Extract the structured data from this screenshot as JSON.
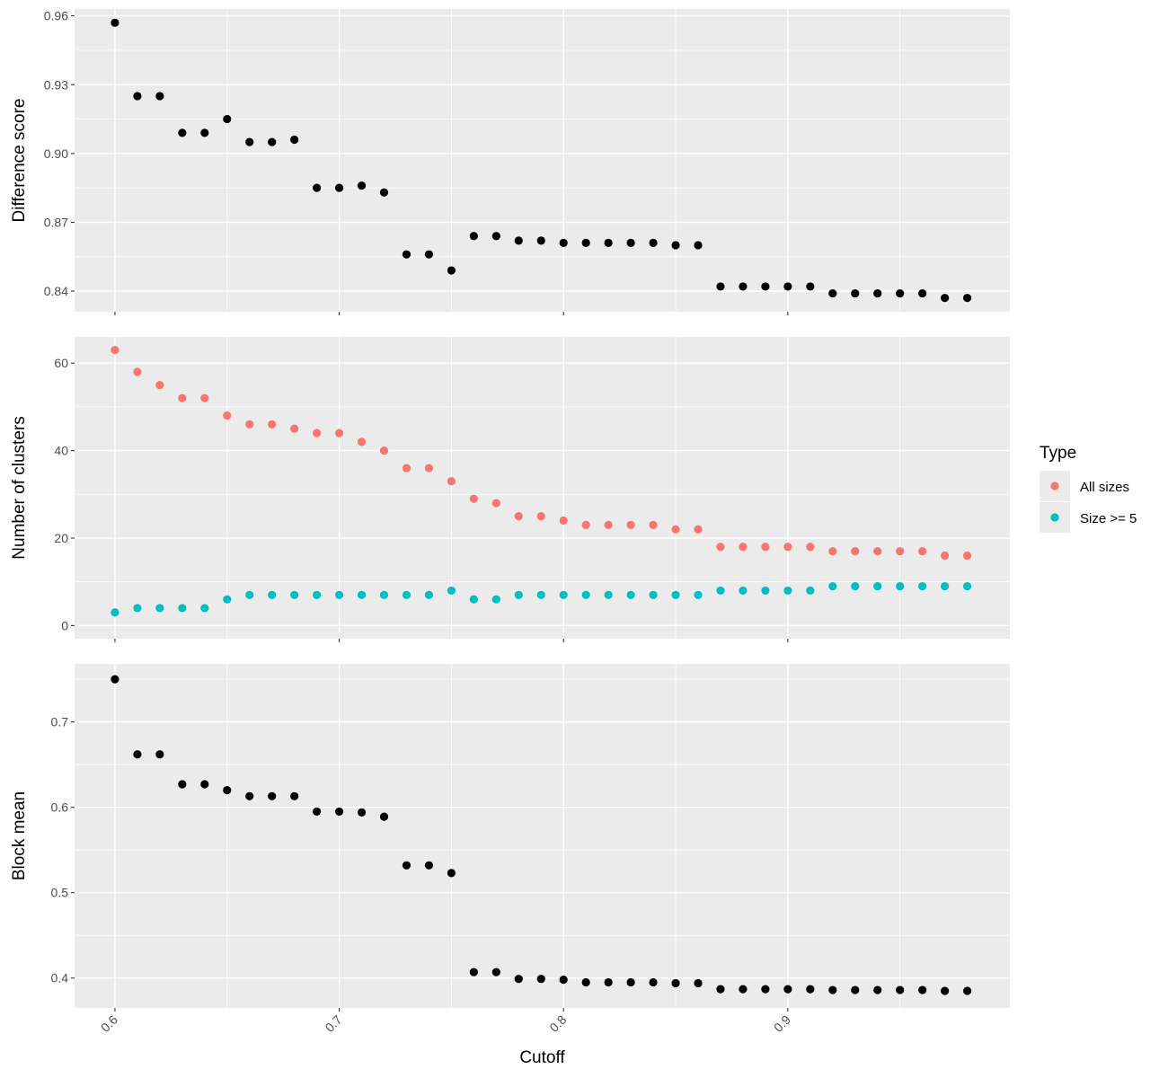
{
  "colors": {
    "panel_background": "#ebebeb",
    "grid": "#ffffff",
    "points_single": "#000000",
    "all_sizes": "#F8766D",
    "size_ge_5": "#00BFC4",
    "tick_text": "#4d4d4d",
    "tick_mark": "#333333",
    "legend_key_background": "#ebebeb"
  },
  "chart_data": [
    {
      "type": "scatter",
      "panel": "difference-score",
      "ylabel": "Difference score",
      "xlabel": "",
      "xlim": [
        0.582,
        0.999
      ],
      "ylim": [
        0.831,
        0.963
      ],
      "y_ticks": [
        "0.84",
        "0.87",
        "0.90",
        "0.93",
        "0.96"
      ],
      "x_ticks": [
        "0.6",
        "0.7",
        "0.8",
        "0.9"
      ],
      "show_x_labels": false,
      "series": [
        {
          "x": [
            0.6,
            0.61,
            0.62,
            0.63,
            0.64,
            0.65,
            0.66,
            0.67,
            0.68,
            0.69,
            0.7,
            0.71,
            0.72,
            0.73,
            0.74,
            0.75,
            0.76,
            0.77,
            0.78,
            0.79,
            0.8,
            0.81,
            0.82,
            0.83,
            0.84,
            0.85,
            0.86,
            0.87,
            0.88,
            0.89,
            0.9,
            0.91,
            0.92,
            0.93,
            0.94,
            0.95,
            0.96,
            0.97,
            0.98
          ],
          "y": [
            0.957,
            0.925,
            0.925,
            0.909,
            0.909,
            0.915,
            0.905,
            0.905,
            0.906,
            0.885,
            0.885,
            0.886,
            0.883,
            0.856,
            0.856,
            0.849,
            0.864,
            0.864,
            0.862,
            0.862,
            0.861,
            0.861,
            0.861,
            0.861,
            0.861,
            0.86,
            0.86,
            0.842,
            0.842,
            0.842,
            0.842,
            0.842,
            0.839,
            0.839,
            0.839,
            0.839,
            0.839,
            0.837,
            0.837
          ]
        }
      ]
    },
    {
      "type": "scatter",
      "panel": "number-of-clusters",
      "ylabel": "Number of clusters",
      "xlabel": "",
      "xlim": [
        0.582,
        0.999
      ],
      "ylim": [
        -3,
        66
      ],
      "y_ticks": [
        "0",
        "20",
        "40",
        "60"
      ],
      "x_ticks": [
        "0.6",
        "0.7",
        "0.8",
        "0.9"
      ],
      "show_x_labels": false,
      "series": [
        {
          "name": "All sizes",
          "x": [
            0.6,
            0.61,
            0.62,
            0.63,
            0.64,
            0.65,
            0.66,
            0.67,
            0.68,
            0.69,
            0.7,
            0.71,
            0.72,
            0.73,
            0.74,
            0.75,
            0.76,
            0.77,
            0.78,
            0.79,
            0.8,
            0.81,
            0.82,
            0.83,
            0.84,
            0.85,
            0.86,
            0.87,
            0.88,
            0.89,
            0.9,
            0.91,
            0.92,
            0.93,
            0.94,
            0.95,
            0.96,
            0.97,
            0.98
          ],
          "y": [
            63,
            58,
            55,
            52,
            52,
            48,
            46,
            46,
            45,
            44,
            44,
            42,
            40,
            36,
            36,
            33,
            29,
            28,
            25,
            25,
            24,
            23,
            23,
            23,
            23,
            22,
            22,
            18,
            18,
            18,
            18,
            18,
            17,
            17,
            17,
            17,
            17,
            16,
            16
          ]
        },
        {
          "name": "Size >= 5",
          "x": [
            0.6,
            0.61,
            0.62,
            0.63,
            0.64,
            0.65,
            0.66,
            0.67,
            0.68,
            0.69,
            0.7,
            0.71,
            0.72,
            0.73,
            0.74,
            0.75,
            0.76,
            0.77,
            0.78,
            0.79,
            0.8,
            0.81,
            0.82,
            0.83,
            0.84,
            0.85,
            0.86,
            0.87,
            0.88,
            0.89,
            0.9,
            0.91,
            0.92,
            0.93,
            0.94,
            0.95,
            0.96,
            0.97,
            0.98
          ],
          "y": [
            3,
            4,
            4,
            4,
            4,
            6,
            7,
            7,
            7,
            7,
            7,
            7,
            7,
            7,
            7,
            8,
            6,
            6,
            7,
            7,
            7,
            7,
            7,
            7,
            7,
            7,
            7,
            8,
            8,
            8,
            8,
            8,
            9,
            9,
            9,
            9,
            9,
            9,
            9
          ]
        }
      ]
    },
    {
      "type": "scatter",
      "panel": "block-mean",
      "ylabel": "Block mean",
      "xlabel": "Cutoff",
      "xlim": [
        0.582,
        0.999
      ],
      "ylim": [
        0.365,
        0.768
      ],
      "y_ticks": [
        "0.4",
        "0.5",
        "0.6",
        "0.7"
      ],
      "x_ticks": [
        "0.6",
        "0.7",
        "0.8",
        "0.9"
      ],
      "show_x_labels": true,
      "series": [
        {
          "x": [
            0.6,
            0.61,
            0.62,
            0.63,
            0.64,
            0.65,
            0.66,
            0.67,
            0.68,
            0.69,
            0.7,
            0.71,
            0.72,
            0.73,
            0.74,
            0.75,
            0.76,
            0.77,
            0.78,
            0.79,
            0.8,
            0.81,
            0.82,
            0.83,
            0.84,
            0.85,
            0.86,
            0.87,
            0.88,
            0.89,
            0.9,
            0.91,
            0.92,
            0.93,
            0.94,
            0.95,
            0.96,
            0.97,
            0.98
          ],
          "y": [
            0.75,
            0.662,
            0.662,
            0.627,
            0.627,
            0.62,
            0.613,
            0.613,
            0.613,
            0.595,
            0.595,
            0.594,
            0.589,
            0.532,
            0.532,
            0.523,
            0.407,
            0.407,
            0.399,
            0.399,
            0.398,
            0.395,
            0.395,
            0.395,
            0.395,
            0.394,
            0.394,
            0.387,
            0.387,
            0.387,
            0.387,
            0.387,
            0.386,
            0.386,
            0.386,
            0.386,
            0.386,
            0.385,
            0.385
          ]
        }
      ]
    }
  ],
  "legend": {
    "title": "Type",
    "items": [
      {
        "label": "All sizes",
        "color": "#F8766D"
      },
      {
        "label": "Size >= 5",
        "color": "#00BFC4"
      }
    ]
  }
}
